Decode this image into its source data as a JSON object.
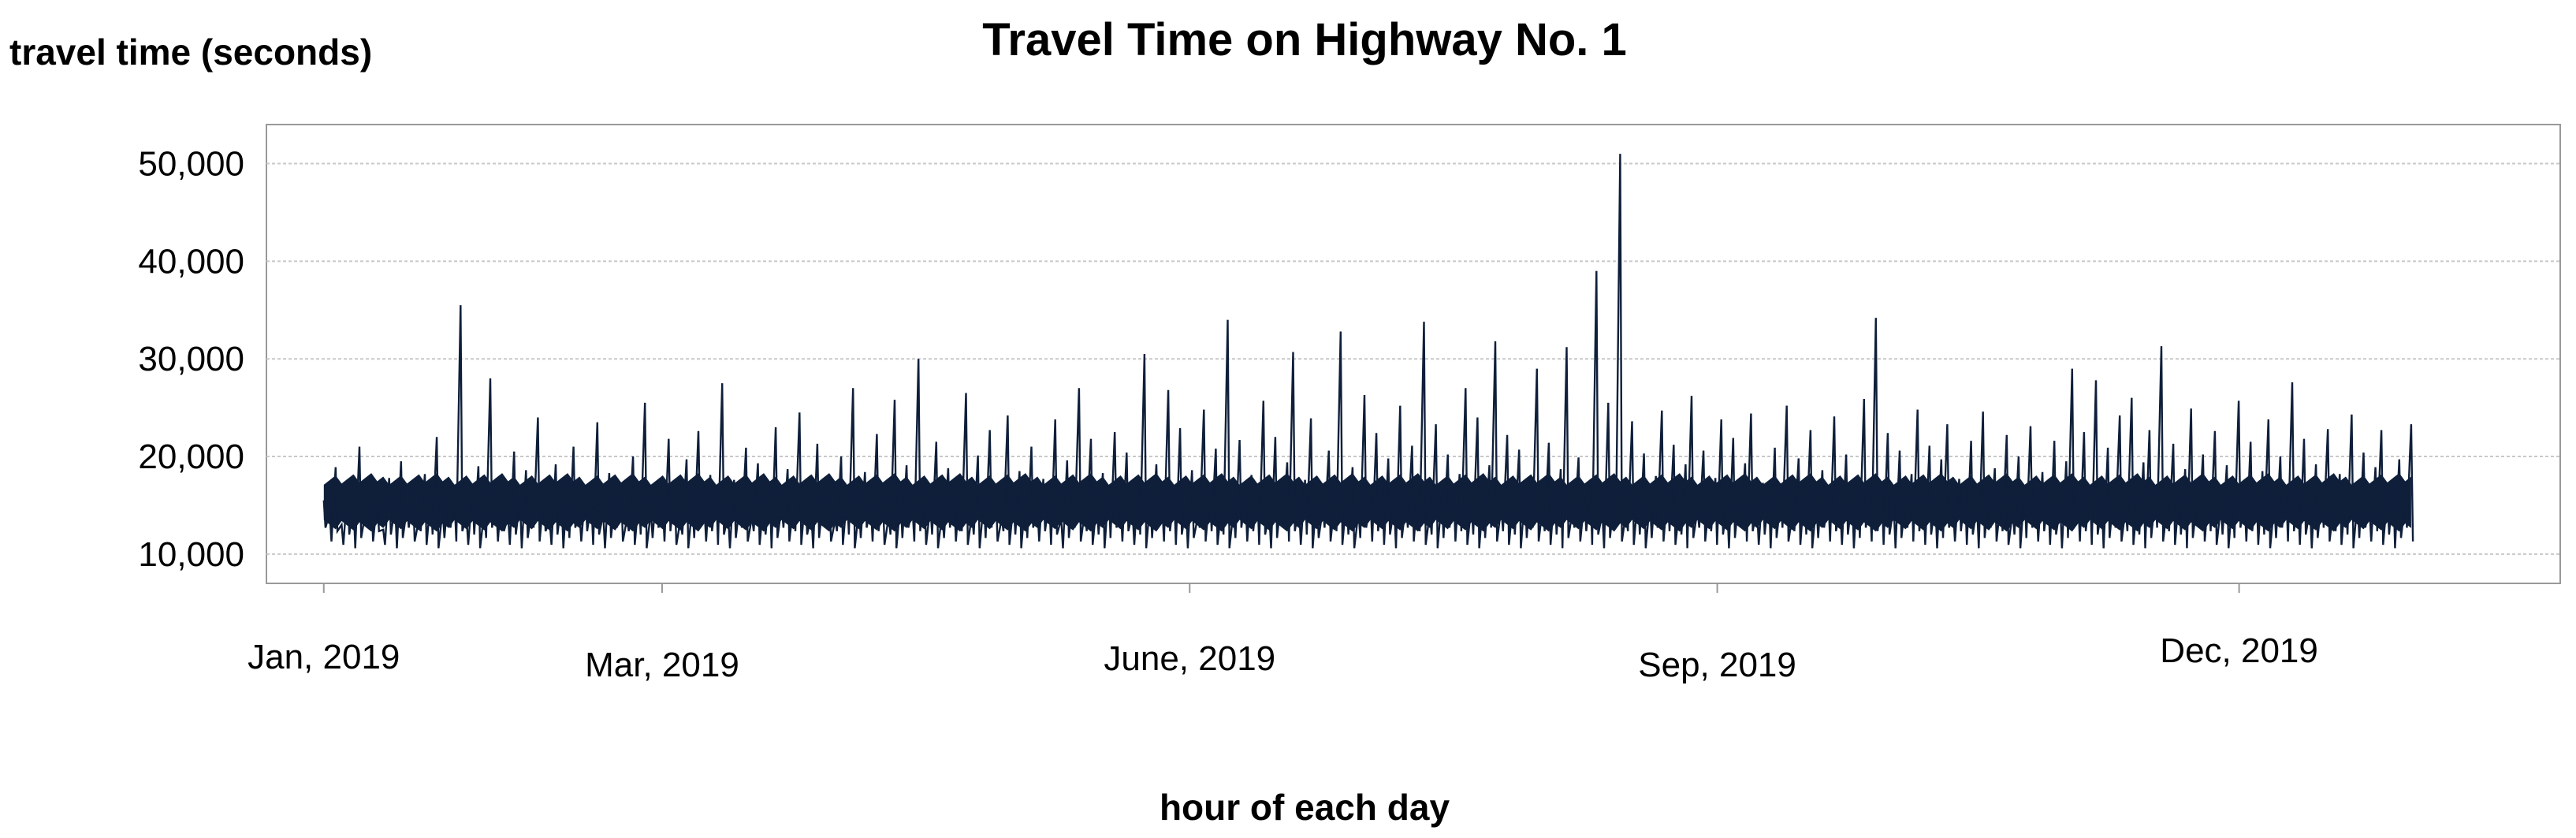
{
  "chart_data": {
    "type": "line",
    "title": "Travel Time on Highway No. 1",
    "ylabel": "travel time (seconds)",
    "xlabel": "hour of each day",
    "ylim": [
      7000,
      54000
    ],
    "yticks": [
      10000,
      20000,
      30000,
      40000,
      50000
    ],
    "ytick_labels": [
      "10,000",
      "20,000",
      "30,000",
      "40,000",
      "50,000"
    ],
    "xlim": [
      "2018-12-22",
      "2020-01-26"
    ],
    "xtick_positions": [
      "2019-01-01",
      "2019-03-01",
      "2019-06-01",
      "2019-09-01",
      "2019-12-01"
    ],
    "xtick_labels": [
      "Jan, 2019",
      "Mar, 2019",
      "June, 2019",
      "Sep, 2019",
      "Dec, 2019"
    ],
    "grid": true,
    "series": [
      {
        "color": "#0f1f3a",
        "x_range": [
          "2019-01-01",
          "2019-12-31"
        ],
        "values": [
          15500,
          14200,
          18900,
          13000,
          16800,
          15200,
          21000,
          14300,
          16000,
          15700,
          12500,
          17800,
          15100,
          19500,
          14800,
          16300,
          13600,
          18200,
          15900,
          22000,
          14600,
          17000,
          15400,
          35500,
          13800,
          16700,
          19000,
          14500,
          28000,
          15200,
          17400,
          13900,
          20500,
          15600,
          18600,
          14700,
          24000,
          16100,
          13400,
          19200,
          15500,
          17800,
          21000,
          14300,
          16600,
          15300,
          23500,
          14100,
          18300,
          15800,
          16900,
          13700,
          20000,
          15900,
          25500,
          14400,
          17300,
          15000,
          21800,
          16400,
          13600,
          19700,
          15200,
          22600,
          14800,
          18100,
          16200,
          27500,
          14000,
          17600,
          15500,
          20900,
          13800,
          19300,
          15700,
          16600,
          23000,
          14900,
          18700,
          15300,
          24500,
          16200,
          14100,
          21300,
          15800,
          17900,
          13500,
          20000,
          16100,
          27000,
          14700,
          18400,
          15100,
          22300,
          16300,
          13900,
          25800,
          15500,
          19100,
          14600,
          30000,
          16800,
          15000,
          21500,
          14400,
          18800,
          15900,
          17200,
          26500,
          14200,
          20100,
          15600,
          22700,
          16700,
          13700,
          24200,
          15300,
          18500,
          16000,
          21000,
          14900,
          17700,
          15600,
          23800,
          13600,
          19600,
          16200,
          27000,
          14500,
          21800,
          15400,
          18300,
          16900,
          22500,
          15200,
          20400,
          14300,
          17900,
          30500,
          15700,
          19200,
          14800,
          26800,
          16100,
          22900,
          15000,
          18600,
          13900,
          24800,
          16400,
          20800,
          15300,
          34000,
          14600,
          21700,
          15800,
          18100,
          16500,
          25700,
          14200,
          22000,
          15900,
          19400,
          30700,
          15100,
          17600,
          23900,
          16300,
          14700,
          20600,
          15500,
          32800,
          16000,
          18900,
          14400,
          26300,
          15700,
          22400,
          16800,
          19800,
          14900,
          25200,
          15400,
          21100,
          17000,
          33800,
          14300,
          23300,
          15900,
          20200,
          16600,
          18200,
          27000,
          15200,
          24000,
          16100,
          19100,
          31800,
          14800,
          22200,
          15600,
          20700,
          16300,
          17800,
          29000,
          15100,
          21400,
          16900,
          18700,
          31200,
          14500,
          19900,
          15800,
          16900,
          39000,
          14200,
          25500,
          15900,
          51000,
          14400,
          23600,
          16200,
          20300,
          15400,
          18000,
          24700,
          16700,
          21200,
          15100,
          19200,
          26200,
          14500,
          20600,
          15700,
          17800,
          23800,
          15200,
          21900,
          16200,
          19300,
          24400,
          14800,
          17300,
          16400,
          20900,
          15600,
          25200,
          14200,
          19800,
          16900,
          22700,
          15300,
          18600,
          16000,
          24100,
          14700,
          20200,
          15900,
          18100,
          25900,
          15200,
          34200,
          16400,
          22400,
          14900,
          20600,
          15700,
          18200,
          24800,
          16100,
          21100,
          15300,
          19700,
          23300,
          14600,
          17700,
          16500,
          21600,
          15000,
          24600,
          16200,
          18800,
          15700,
          22200,
          14400,
          20000,
          16800,
          23100,
          15500,
          18400,
          16000,
          21600,
          14900,
          19500,
          29000,
          15700,
          22500,
          16600,
          27800,
          15100,
          20900,
          16300,
          24200,
          14700,
          26000,
          15900,
          19400,
          22700,
          16200,
          31300,
          15000,
          21300,
          16400,
          18700,
          24900,
          15600,
          20200,
          16800,
          22600,
          14900,
          19100,
          16100,
          25700,
          15400,
          21500,
          16600,
          18500,
          23800,
          15200,
          20000,
          16400,
          27600,
          15800,
          21800,
          14700,
          19200,
          16200,
          22800,
          15100,
          18200,
          16700,
          24300,
          15600,
          20400,
          14800,
          18900,
          22700,
          16100,
          17300,
          19700,
          15500,
          23300
        ]
      }
    ]
  }
}
